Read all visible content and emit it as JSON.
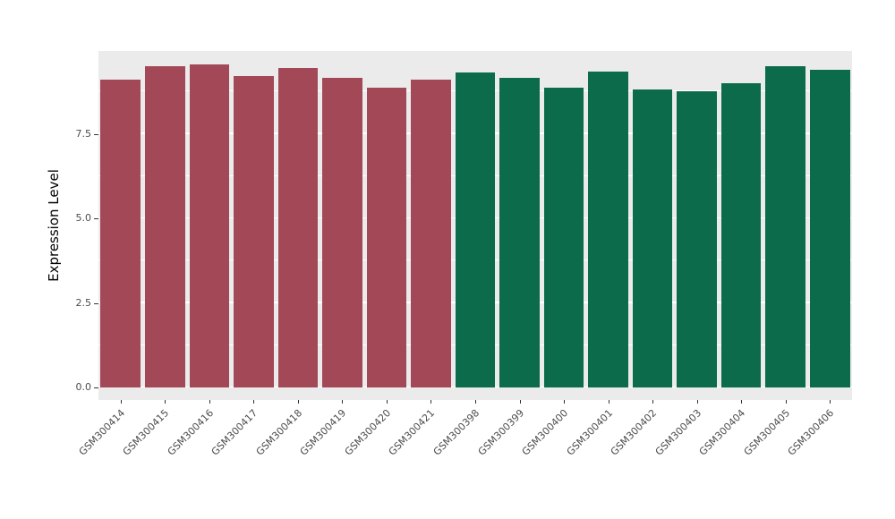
{
  "chart_data": {
    "type": "bar",
    "title": "",
    "xlabel": "",
    "ylabel": "Expression Level",
    "ylim": [
      0,
      10
    ],
    "grid": true,
    "legend": "none",
    "panel_bg": "#EBEBEB",
    "grid_color": "#FFFFFF",
    "ytick_labels": [
      "0.0",
      "2.5",
      "5.0",
      "7.5"
    ],
    "ytick_values": [
      0,
      2.5,
      5.0,
      7.5
    ],
    "minor_tick_values": [
      1.25,
      3.75,
      6.25,
      8.75
    ],
    "categories": [
      "GSM300414",
      "GSM300415",
      "GSM300416",
      "GSM300417",
      "GSM300418",
      "GSM300419",
      "GSM300420",
      "GSM300421",
      "GSM300398",
      "GSM300399",
      "GSM300400",
      "GSM300401",
      "GSM300402",
      "GSM300403",
      "GSM300404",
      "GSM300405",
      "GSM300406"
    ],
    "series": [
      {
        "name": "Expression Level",
        "values": [
          9.1,
          9.5,
          9.55,
          9.2,
          9.45,
          9.15,
          8.85,
          9.1,
          9.3,
          9.15,
          8.85,
          9.35,
          8.8,
          8.75,
          9.0,
          9.5,
          9.4
        ]
      }
    ],
    "bar_groups": [
      {
        "name": "group-1",
        "color": "#A24857",
        "start_index": 0,
        "end_index": 7
      },
      {
        "name": "group-2",
        "color": "#0B6B4A",
        "start_index": 8,
        "end_index": 16
      }
    ]
  }
}
